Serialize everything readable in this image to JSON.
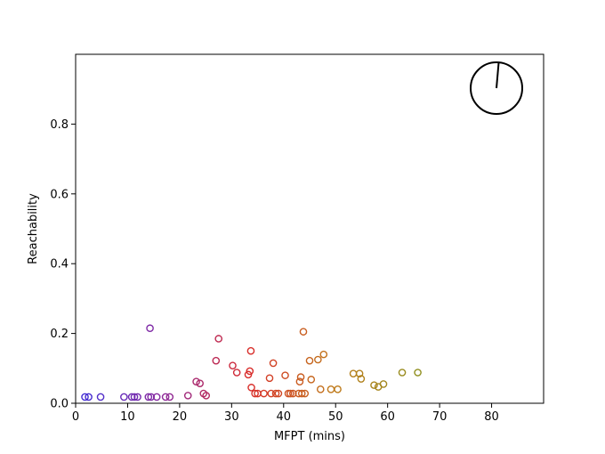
{
  "chart_data": {
    "type": "scatter",
    "title": "",
    "xlabel": "MFPT (mins)",
    "ylabel": "Reachability",
    "xlim": [
      0,
      90
    ],
    "ylim": [
      0,
      1.0
    ],
    "xticks": [
      0,
      10,
      20,
      30,
      40,
      50,
      60,
      70,
      80
    ],
    "yticks": [
      0.0,
      0.2,
      0.4,
      0.6,
      0.8
    ],
    "ytick_labels": [
      "0.0",
      "0.2",
      "0.4",
      "0.6",
      "0.8"
    ],
    "grid": false,
    "legend": "none",
    "marker": "hollow-circle",
    "color_scale": [
      "#3b2fd9",
      "#8a2a9e",
      "#d92a2a",
      "#c07a1a",
      "#8f8f1f"
    ],
    "inset_glyph": {
      "icon": "clock-dial-icon",
      "hand_angle_deg_from_12": 5
    },
    "points": [
      {
        "x": 1.8,
        "y": 0.018
      },
      {
        "x": 2.5,
        "y": 0.018
      },
      {
        "x": 4.8,
        "y": 0.018
      },
      {
        "x": 9.3,
        "y": 0.018
      },
      {
        "x": 10.8,
        "y": 0.018
      },
      {
        "x": 11.3,
        "y": 0.018
      },
      {
        "x": 11.9,
        "y": 0.018
      },
      {
        "x": 14.0,
        "y": 0.018
      },
      {
        "x": 14.5,
        "y": 0.018
      },
      {
        "x": 15.6,
        "y": 0.018
      },
      {
        "x": 17.3,
        "y": 0.018
      },
      {
        "x": 18.1,
        "y": 0.018
      },
      {
        "x": 14.3,
        "y": 0.215
      },
      {
        "x": 21.6,
        "y": 0.022
      },
      {
        "x": 23.2,
        "y": 0.062
      },
      {
        "x": 23.9,
        "y": 0.057
      },
      {
        "x": 24.6,
        "y": 0.028
      },
      {
        "x": 25.1,
        "y": 0.022
      },
      {
        "x": 27.0,
        "y": 0.122
      },
      {
        "x": 27.5,
        "y": 0.185
      },
      {
        "x": 30.2,
        "y": 0.108
      },
      {
        "x": 31.0,
        "y": 0.088
      },
      {
        "x": 33.2,
        "y": 0.082
      },
      {
        "x": 33.5,
        "y": 0.092
      },
      {
        "x": 33.7,
        "y": 0.15
      },
      {
        "x": 33.8,
        "y": 0.045
      },
      {
        "x": 34.5,
        "y": 0.028
      },
      {
        "x": 35.0,
        "y": 0.028
      },
      {
        "x": 36.2,
        "y": 0.028
      },
      {
        "x": 37.3,
        "y": 0.072
      },
      {
        "x": 37.6,
        "y": 0.028
      },
      {
        "x": 38.0,
        "y": 0.115
      },
      {
        "x": 38.5,
        "y": 0.028
      },
      {
        "x": 39.0,
        "y": 0.028
      },
      {
        "x": 40.3,
        "y": 0.08
      },
      {
        "x": 40.9,
        "y": 0.028
      },
      {
        "x": 41.3,
        "y": 0.028
      },
      {
        "x": 41.8,
        "y": 0.028
      },
      {
        "x": 42.9,
        "y": 0.028
      },
      {
        "x": 43.1,
        "y": 0.062
      },
      {
        "x": 43.3,
        "y": 0.075
      },
      {
        "x": 43.5,
        "y": 0.028
      },
      {
        "x": 43.8,
        "y": 0.205
      },
      {
        "x": 44.1,
        "y": 0.028
      },
      {
        "x": 45.0,
        "y": 0.122
      },
      {
        "x": 45.3,
        "y": 0.068
      },
      {
        "x": 46.6,
        "y": 0.125
      },
      {
        "x": 47.1,
        "y": 0.04
      },
      {
        "x": 47.7,
        "y": 0.14
      },
      {
        "x": 49.1,
        "y": 0.04
      },
      {
        "x": 50.4,
        "y": 0.04
      },
      {
        "x": 53.4,
        "y": 0.085
      },
      {
        "x": 54.6,
        "y": 0.085
      },
      {
        "x": 54.9,
        "y": 0.07
      },
      {
        "x": 57.4,
        "y": 0.052
      },
      {
        "x": 58.2,
        "y": 0.047
      },
      {
        "x": 59.2,
        "y": 0.055
      },
      {
        "x": 62.8,
        "y": 0.088
      },
      {
        "x": 65.8,
        "y": 0.088
      }
    ]
  }
}
